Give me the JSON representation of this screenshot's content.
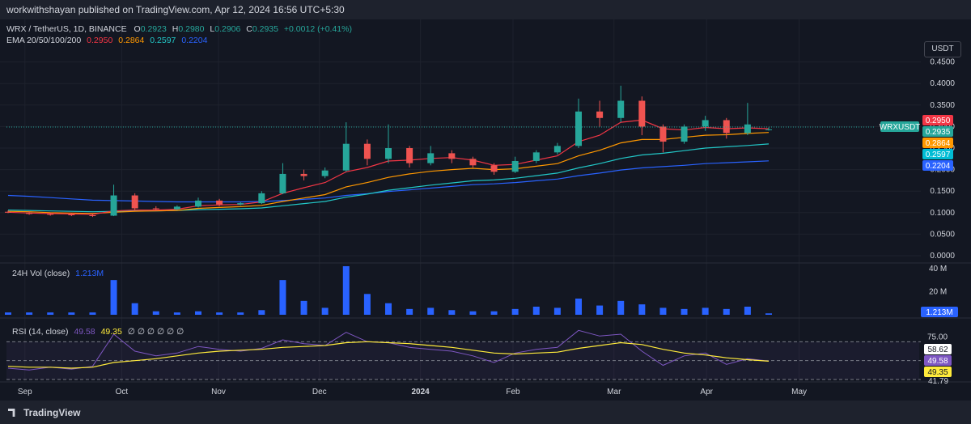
{
  "header": {
    "published_text": "workwithshayan published on TradingView.com, Apr 12, 2024 16:56 UTC+5:30"
  },
  "symbol_line": {
    "symbol": "WRX / TetherUS, 1D, BINANCE",
    "o_label": "O",
    "o_value": "0.2923",
    "h_label": "H",
    "h_value": "0.2980",
    "l_label": "L",
    "l_value": "0.2906",
    "c_label": "C",
    "c_value": "0.2935",
    "change": "+0.0012 (+0.41%)"
  },
  "ema_line": {
    "label": "EMA 20/50/100/200",
    "v20": "0.2950",
    "v50": "0.2864",
    "v100": "0.2597",
    "v200": "0.2204"
  },
  "currency_button": "USDT",
  "volume_legend": {
    "label": "24H Vol (close)",
    "value": "1.213M"
  },
  "rsi_legend": {
    "label": "RSI (14, close)",
    "v1": "49.58",
    "v2": "49.35",
    "extras": "∅ ∅ ∅ ∅ ∅ ∅"
  },
  "footer": {
    "brand": "TradingView"
  },
  "colors": {
    "up": "#26a69a",
    "down": "#ef5350",
    "ema20": "#f23645",
    "ema50": "#ff9800",
    "ema100": "#22c7c7",
    "ema200": "#2962ff",
    "volume": "#2962ff",
    "rsi": "#7e57c2",
    "rsi_ma": "#ffeb3b"
  },
  "chart_data": {
    "type": "candlestick",
    "symbol_badge": "WRXUSDT",
    "price_ticks": [
      "0.4500",
      "0.4000",
      "0.3500",
      "0.3000",
      "0.2500",
      "0.2000",
      "0.1500",
      "0.1000",
      "0.0500",
      "0.0000"
    ],
    "price_axis_labels": [
      {
        "value": 0.295,
        "text": "0.2950",
        "color": "#f23645"
      },
      {
        "value": 0.2935,
        "text": "0.2935",
        "color": "#26a69a"
      },
      {
        "value": 0.2864,
        "text": "0.2864",
        "color": "#ff9800"
      },
      {
        "value": 0.2597,
        "text": "0.2597",
        "color": "#00bcd4"
      },
      {
        "value": 0.2204,
        "text": "0.2204",
        "color": "#2962ff"
      }
    ],
    "price_range": [
      0.0,
      0.47
    ],
    "x_ticks": [
      "Sep",
      "Oct",
      "Nov",
      "Dec",
      "2024",
      "Feb",
      "Mar",
      "Apr",
      "May"
    ],
    "candles": [
      {
        "x": "Sep 1",
        "o": 0.102,
        "h": 0.105,
        "l": 0.099,
        "c": 0.1
      },
      {
        "x": "Sep 10",
        "o": 0.1,
        "h": 0.103,
        "l": 0.095,
        "c": 0.097
      },
      {
        "x": "Sep 20",
        "o": 0.097,
        "h": 0.1,
        "l": 0.093,
        "c": 0.096
      },
      {
        "x": "Oct 1",
        "o": 0.096,
        "h": 0.099,
        "l": 0.092,
        "c": 0.094
      },
      {
        "x": "Oct 10",
        "o": 0.094,
        "h": 0.097,
        "l": 0.09,
        "c": 0.093
      },
      {
        "x": "Oct 14",
        "o": 0.093,
        "h": 0.165,
        "l": 0.092,
        "c": 0.14
      },
      {
        "x": "Oct 16",
        "o": 0.14,
        "h": 0.145,
        "l": 0.105,
        "c": 0.11
      },
      {
        "x": "Oct 25",
        "o": 0.11,
        "h": 0.115,
        "l": 0.104,
        "c": 0.108
      },
      {
        "x": "Nov 5",
        "o": 0.108,
        "h": 0.117,
        "l": 0.106,
        "c": 0.114
      },
      {
        "x": "Nov 15",
        "o": 0.114,
        "h": 0.135,
        "l": 0.112,
        "c": 0.128
      },
      {
        "x": "Nov 25",
        "o": 0.128,
        "h": 0.132,
        "l": 0.115,
        "c": 0.119
      },
      {
        "x": "Dec 5",
        "o": 0.119,
        "h": 0.125,
        "l": 0.117,
        "c": 0.122
      },
      {
        "x": "Dec 12",
        "o": 0.122,
        "h": 0.15,
        "l": 0.12,
        "c": 0.145
      },
      {
        "x": "Dec 15",
        "o": 0.145,
        "h": 0.215,
        "l": 0.143,
        "c": 0.19
      },
      {
        "x": "Dec 20",
        "o": 0.19,
        "h": 0.2,
        "l": 0.175,
        "c": 0.185
      },
      {
        "x": "Dec 27",
        "o": 0.185,
        "h": 0.205,
        "l": 0.18,
        "c": 0.198
      },
      {
        "x": "Jan 1",
        "o": 0.198,
        "h": 0.31,
        "l": 0.195,
        "c": 0.26
      },
      {
        "x": "Jan 5",
        "o": 0.26,
        "h": 0.27,
        "l": 0.21,
        "c": 0.225
      },
      {
        "x": "Jan 10",
        "o": 0.225,
        "h": 0.305,
        "l": 0.215,
        "c": 0.25
      },
      {
        "x": "Jan 15",
        "o": 0.25,
        "h": 0.255,
        "l": 0.205,
        "c": 0.215
      },
      {
        "x": "Jan 22",
        "o": 0.215,
        "h": 0.255,
        "l": 0.21,
        "c": 0.238
      },
      {
        "x": "Jan 28",
        "o": 0.238,
        "h": 0.245,
        "l": 0.215,
        "c": 0.225
      },
      {
        "x": "Feb 5",
        "o": 0.225,
        "h": 0.23,
        "l": 0.205,
        "c": 0.21
      },
      {
        "x": "Feb 12",
        "o": 0.21,
        "h": 0.215,
        "l": 0.188,
        "c": 0.195
      },
      {
        "x": "Feb 18",
        "o": 0.195,
        "h": 0.23,
        "l": 0.192,
        "c": 0.22
      },
      {
        "x": "Feb 24",
        "o": 0.22,
        "h": 0.245,
        "l": 0.215,
        "c": 0.24
      },
      {
        "x": "Mar 1",
        "o": 0.24,
        "h": 0.262,
        "l": 0.235,
        "c": 0.255
      },
      {
        "x": "Mar 3",
        "o": 0.255,
        "h": 0.365,
        "l": 0.25,
        "c": 0.335
      },
      {
        "x": "Mar 7",
        "o": 0.335,
        "h": 0.36,
        "l": 0.3,
        "c": 0.32
      },
      {
        "x": "Mar 12",
        "o": 0.32,
        "h": 0.395,
        "l": 0.31,
        "c": 0.36
      },
      {
        "x": "Mar 15",
        "o": 0.36,
        "h": 0.37,
        "l": 0.28,
        "c": 0.3
      },
      {
        "x": "Mar 19",
        "o": 0.3,
        "h": 0.305,
        "l": 0.24,
        "c": 0.265
      },
      {
        "x": "Mar 24",
        "o": 0.265,
        "h": 0.305,
        "l": 0.26,
        "c": 0.3
      },
      {
        "x": "Mar 29",
        "o": 0.3,
        "h": 0.325,
        "l": 0.29,
        "c": 0.315
      },
      {
        "x": "Apr 3",
        "o": 0.315,
        "h": 0.32,
        "l": 0.272,
        "c": 0.285
      },
      {
        "x": "Apr 8",
        "o": 0.285,
        "h": 0.355,
        "l": 0.28,
        "c": 0.305
      },
      {
        "x": "Apr 12",
        "o": 0.2923,
        "h": 0.298,
        "l": 0.2906,
        "c": 0.2935
      }
    ],
    "ema": {
      "ema20": [
        0.101,
        0.099,
        0.098,
        0.097,
        0.096,
        0.104,
        0.106,
        0.106,
        0.108,
        0.116,
        0.118,
        0.119,
        0.125,
        0.145,
        0.158,
        0.17,
        0.195,
        0.205,
        0.22,
        0.222,
        0.226,
        0.228,
        0.222,
        0.21,
        0.212,
        0.222,
        0.232,
        0.265,
        0.28,
        0.31,
        0.315,
        0.295,
        0.292,
        0.298,
        0.295,
        0.297,
        0.295
      ],
      "ema50": [
        0.103,
        0.102,
        0.1,
        0.099,
        0.098,
        0.101,
        0.103,
        0.104,
        0.105,
        0.11,
        0.112,
        0.114,
        0.117,
        0.126,
        0.134,
        0.142,
        0.16,
        0.17,
        0.182,
        0.19,
        0.196,
        0.2,
        0.203,
        0.2,
        0.202,
        0.208,
        0.214,
        0.232,
        0.245,
        0.262,
        0.27,
        0.27,
        0.275,
        0.28,
        0.281,
        0.284,
        0.2864
      ],
      "ema100": [
        0.106,
        0.105,
        0.104,
        0.103,
        0.102,
        0.103,
        0.104,
        0.104,
        0.105,
        0.107,
        0.108,
        0.109,
        0.111,
        0.116,
        0.121,
        0.126,
        0.136,
        0.143,
        0.152,
        0.158,
        0.164,
        0.169,
        0.174,
        0.176,
        0.18,
        0.186,
        0.192,
        0.204,
        0.214,
        0.226,
        0.234,
        0.238,
        0.244,
        0.25,
        0.253,
        0.256,
        0.2597
      ],
      "ema200": [
        0.14,
        0.138,
        0.135,
        0.132,
        0.129,
        0.128,
        0.127,
        0.126,
        0.125,
        0.125,
        0.125,
        0.125,
        0.126,
        0.128,
        0.131,
        0.134,
        0.14,
        0.144,
        0.149,
        0.153,
        0.157,
        0.161,
        0.165,
        0.167,
        0.17,
        0.174,
        0.178,
        0.186,
        0.192,
        0.199,
        0.204,
        0.207,
        0.21,
        0.214,
        0.216,
        0.218,
        0.2204
      ]
    },
    "volume_ticks": [
      "40 M",
      "20 M"
    ],
    "volume_range": [
      0,
      42
    ],
    "volume_badge": "1.213M",
    "volume": [
      2,
      2,
      2,
      2,
      2,
      30,
      10,
      3,
      2,
      3,
      2,
      2,
      4,
      30,
      12,
      6,
      42,
      18,
      10,
      5,
      6,
      4,
      3,
      3,
      5,
      7,
      6,
      14,
      8,
      12,
      9,
      6,
      5,
      6,
      5,
      7,
      1.213
    ],
    "rsi_ticks": [
      "75.00"
    ],
    "rsi_badges": [
      {
        "value": 58.62,
        "text": "58.62"
      },
      {
        "value": 49.58,
        "text": "49.58"
      },
      {
        "value": 49.35,
        "text": "49.35"
      }
    ],
    "rsi_partial_label": "41.79",
    "rsi_range": [
      30,
      90
    ],
    "rsi_bands": [
      70,
      50,
      30
    ],
    "rsi": [
      42,
      40,
      43,
      41,
      44,
      78,
      60,
      55,
      58,
      65,
      62,
      60,
      63,
      72,
      68,
      66,
      80,
      70,
      69,
      64,
      62,
      60,
      55,
      48,
      58,
      62,
      64,
      82,
      76,
      78,
      60,
      45,
      55,
      58,
      46,
      52,
      49.58
    ],
    "rsi_ma": [
      44,
      43,
      43,
      42,
      43,
      48,
      50,
      52,
      55,
      58,
      60,
      61,
      62,
      64,
      65,
      66,
      69,
      70,
      69,
      68,
      66,
      64,
      61,
      58,
      57,
      58,
      59,
      63,
      66,
      69,
      67,
      62,
      58,
      56,
      53,
      51,
      49.35
    ]
  }
}
